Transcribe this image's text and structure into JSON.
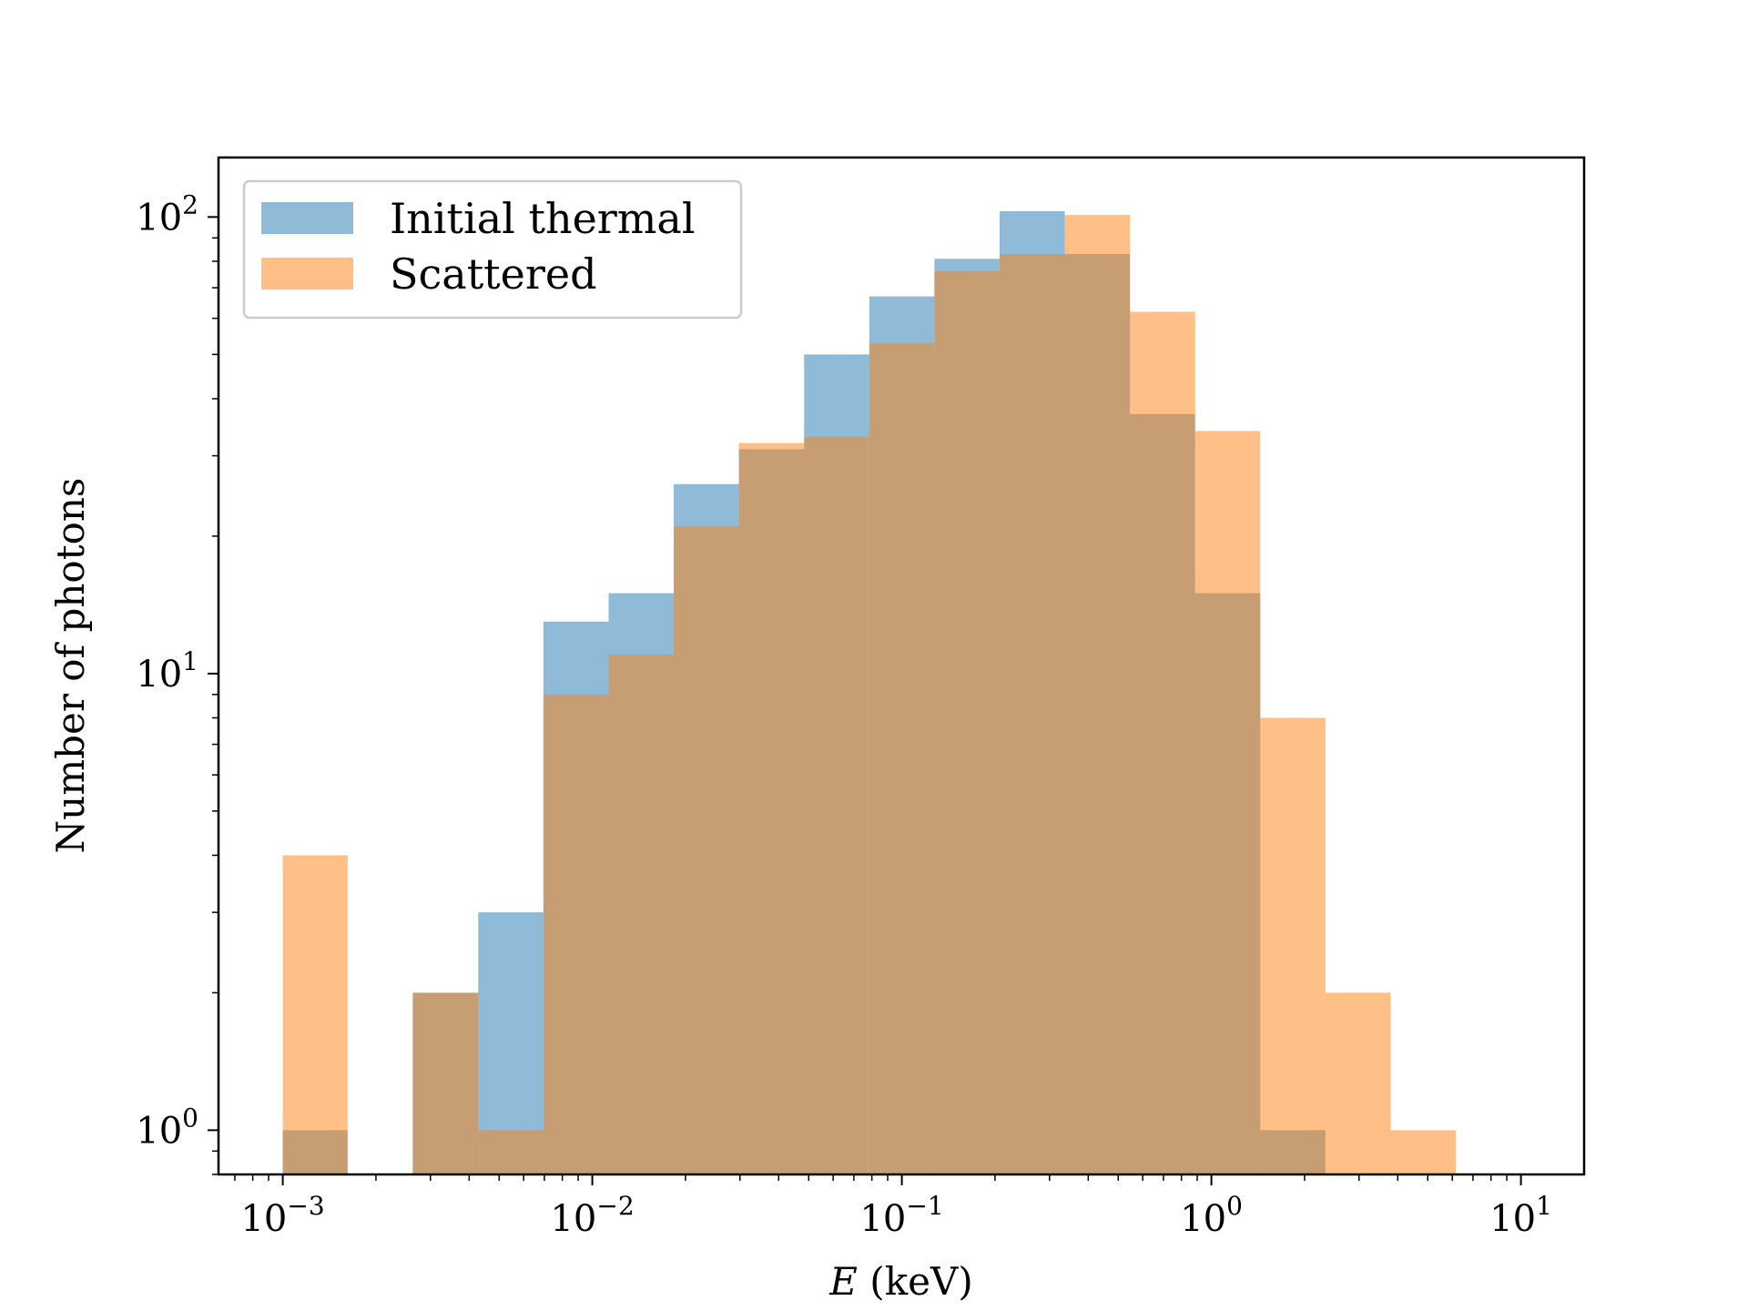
{
  "chart_data": {
    "type": "bar",
    "subtype": "histogram",
    "xscale": "log",
    "yscale": "log",
    "xlim": [
      0.00062,
      16
    ],
    "ylim": [
      0.8,
      135
    ],
    "xlabel": "E (keV)",
    "xlabel_var": "E",
    "xlabel_unit": " (keV)",
    "ylabel": "Number of photons",
    "legend_position": "top-left",
    "grid": false,
    "x_ticks": [
      {
        "base": "10",
        "exp": "−3",
        "value": 0.001
      },
      {
        "base": "10",
        "exp": "−2",
        "value": 0.01
      },
      {
        "base": "10",
        "exp": "−1",
        "value": 0.1
      },
      {
        "base": "10",
        "exp": "0",
        "value": 1
      },
      {
        "base": "10",
        "exp": "1",
        "value": 10
      }
    ],
    "y_ticks": [
      {
        "base": "10",
        "exp": "0",
        "value": 1
      },
      {
        "base": "10",
        "exp": "1",
        "value": 10
      },
      {
        "base": "10",
        "exp": "2",
        "value": 100
      }
    ],
    "bin_edges": [
      0.001,
      0.00162,
      0.00263,
      0.00428,
      0.00695,
      0.01129,
      0.01833,
      0.02976,
      0.04833,
      0.07848,
      0.12743,
      0.20691,
      0.33598,
      0.54556,
      0.88587,
      1.4384,
      2.3357,
      3.7927,
      6.1585
    ],
    "series": [
      {
        "name": "Initial thermal",
        "color": "#1f77b4",
        "opacity": 0.5,
        "values": [
          1,
          0,
          2,
          3,
          13,
          15,
          26,
          31,
          50,
          67,
          81,
          103,
          83,
          37,
          15,
          1,
          0,
          0
        ]
      },
      {
        "name": "Scattered",
        "color": "#ff7f0e",
        "opacity": 0.5,
        "values": [
          4,
          0,
          2,
          1,
          9,
          11,
          21,
          32,
          33,
          53,
          76,
          83,
          101,
          62,
          34,
          8,
          2,
          1
        ]
      }
    ]
  }
}
